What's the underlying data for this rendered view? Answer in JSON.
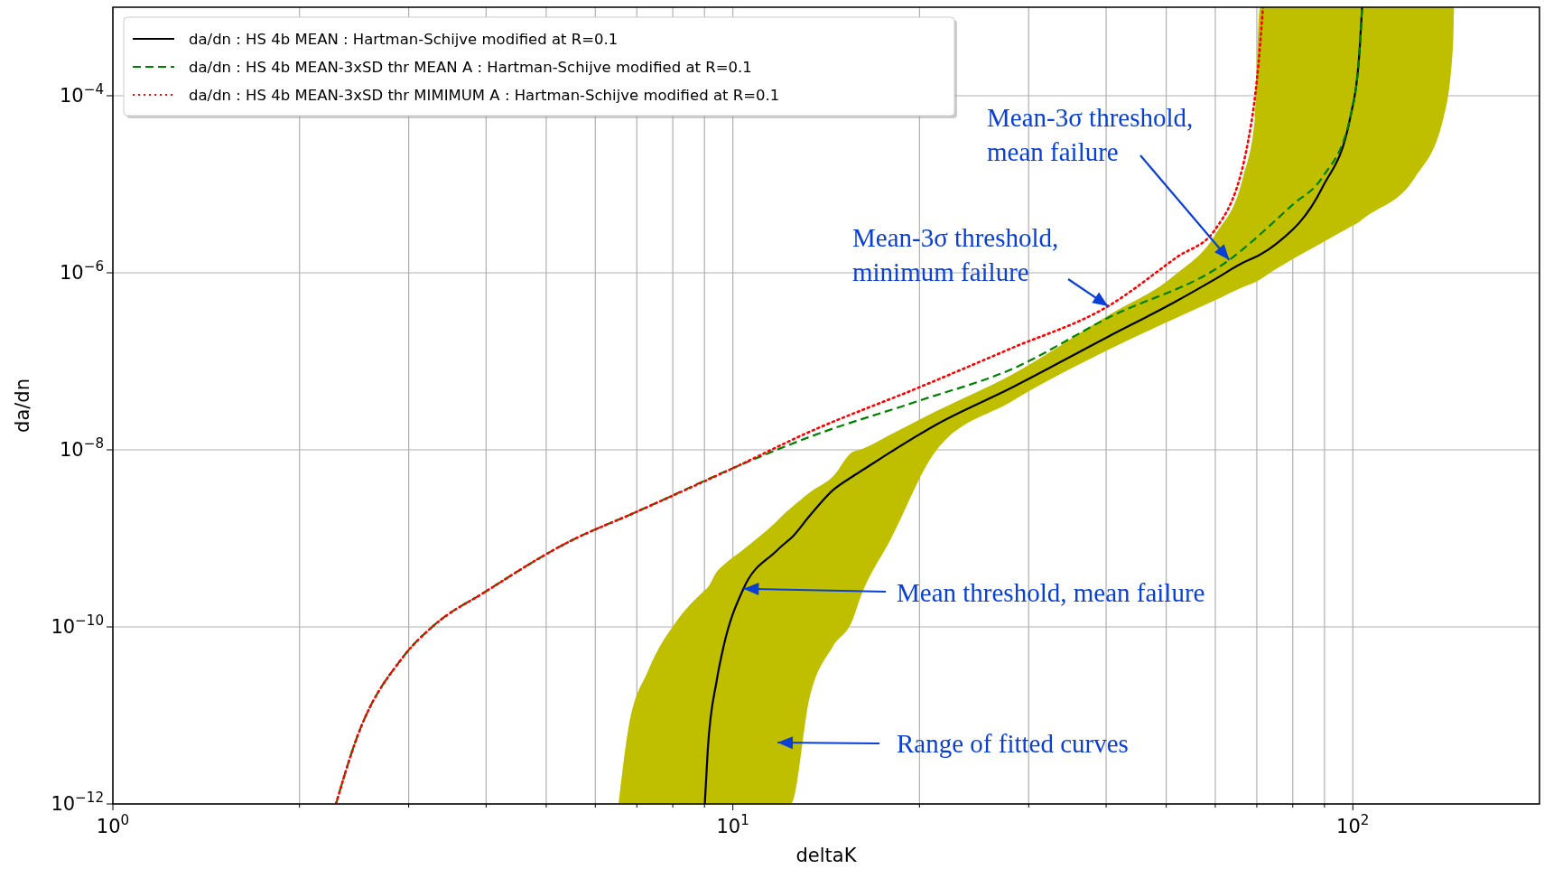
{
  "chart_data": {
    "type": "line",
    "xlabel": "deltaK",
    "ylabel": "da/dn",
    "log": "xy",
    "grid": true,
    "legend": "top left",
    "marker": "none",
    "xlim": [
      1,
      200
    ],
    "ylim": [
      1e-12,
      0.001
    ],
    "xticks": [
      {
        "value": 1,
        "label": "10$^{0}$"
      },
      {
        "value": 2,
        "label": null
      },
      {
        "value": 3,
        "label": null
      },
      {
        "value": 4,
        "label": null
      },
      {
        "value": 5,
        "label": null
      },
      {
        "value": 6,
        "label": null
      },
      {
        "value": 7,
        "label": null
      },
      {
        "value": 8,
        "label": null
      },
      {
        "value": 9,
        "label": null
      },
      {
        "value": 10,
        "label": "10$^{1}$"
      },
      {
        "value": 20,
        "label": null
      },
      {
        "value": 30,
        "label": null
      },
      {
        "value": 40,
        "label": null
      },
      {
        "value": 50,
        "label": null
      },
      {
        "value": 60,
        "label": null
      },
      {
        "value": 70,
        "label": null
      },
      {
        "value": 80,
        "label": null
      },
      {
        "value": 90,
        "label": null
      },
      {
        "value": 100,
        "label": "10$^{2}$"
      }
    ],
    "yticks": [
      {
        "value": 1e-12,
        "label": "10$^{−12}$"
      },
      {
        "value": 1e-10,
        "label": "10$^{−10}$"
      },
      {
        "value": 1e-08,
        "label": "10$^{−8}$"
      },
      {
        "value": 1e-06,
        "label": "10$^{−6}$"
      },
      {
        "value": 0.0001,
        "label": "10$^{−4}$"
      }
    ],
    "series": [
      {
        "name": "da/dn : HS 4b MEAN : Hartman-Schijve modified at R=0.1",
        "color": "#000000",
        "line_style": "solid",
        "x": [
          6.54,
          6.78,
          7.3,
          8.14,
          9.01,
          9.11,
          9.42,
          9.66,
          10.4,
          11.7,
          12.2,
          12.4,
          13.3,
          14.5,
          15.6,
          16,
          18,
          21.2,
          28.1,
          40.3,
          51.4,
          60,
          66.5,
          69.5,
          70.8,
          75.1,
          89.3,
          99,
          102.6,
          103.5,
          126,
          140,
          145,
          145.6
        ],
        "values": [
          null,
          null,
          null,
          null,
          1e-12,
          4.1e-12,
          2.5e-11,
          6e-11,
          2.7e-10,
          7e-10,
          9.1e-10,
          1e-09,
          1.8e-09,
          3.5e-09,
          5e-09,
          5.6e-09,
          9.5e-09,
          1.9e-08,
          5e-08,
          1.9e-07,
          4.6e-07,
          8.5e-07,
          1.3e-06,
          1.5e-06,
          1.6e-06,
          2.1e-06,
          9.2e-06,
          5.6e-05,
          0.00035,
          0.001,
          null,
          null,
          null,
          null
        ],
        "upper": [
          1e-12,
          7e-12,
          3.2e-11,
          1.2e-10,
          2.6e-10,
          2.8e-10,
          4.2e-10,
          5e-10,
          7.5e-10,
          1.5e-09,
          2e-09,
          2.2e-09,
          3.3e-09,
          5e-09,
          9.5e-09,
          1e-08,
          1.5e-08,
          2.7e-08,
          7e-08,
          3.3e-07,
          9.2e-07,
          2.7e-06,
          1.2e-05,
          5.6e-05,
          0.001,
          0.001,
          0.001,
          0.001,
          0.001,
          0.001,
          0.001,
          0.001,
          0.001,
          0.001
        ],
        "lower": [
          1e-12,
          1e-12,
          1e-12,
          1e-12,
          1e-12,
          1e-12,
          1e-12,
          1e-12,
          1e-12,
          1e-12,
          1e-12,
          1e-12,
          1.6e-11,
          6e-11,
          1.2e-10,
          2e-10,
          1e-09,
          9.5e-09,
          3.5e-08,
          1.35e-07,
          3e-07,
          4.9e-07,
          6.9e-07,
          7.8e-07,
          8.4e-07,
          1.1e-06,
          2.2e-06,
          3.3e-06,
          3.8e-06,
          4e-06,
          1.2e-05,
          5.6e-05,
          0.00035,
          0.001
        ]
      },
      {
        "name": "da/dn : HS 4b MEAN-3xSD thr MEAN A : Hartman-Schijve modified at R=0.1",
        "color": "#008000",
        "line_style": "dashed",
        "x": [
          2.29,
          2.47,
          2.94,
          3.3,
          3.99,
          5.43,
          7,
          10,
          13.3,
          20,
          28.1,
          40.3,
          63.2,
          80,
          89.3,
          99,
          102.6,
          103.5
        ],
        "values": [
          1e-12,
          5.4e-12,
          4.6e-11,
          1.05e-10,
          2.5e-10,
          9.1e-10,
          2e-09,
          6.2e-09,
          1.4e-08,
          3.6e-08,
          8.1e-08,
          3.1e-07,
          1.4e-06,
          5.9e-06,
          1.2e-05,
          5.6e-05,
          0.00035,
          0.001
        ]
      },
      {
        "name": "da/dn : HS 4b MEAN-3xSD thr MIMIMUM A : Hartman-Schijve modified at R=0.1",
        "color": "#ff0000",
        "line_style": "dotted",
        "x": [
          2.29,
          2.47,
          2.94,
          3.3,
          3.99,
          5.43,
          7,
          10,
          13.3,
          20,
          28.1,
          40.3,
          52,
          60,
          67.8,
          70.8,
          71.6
        ],
        "values": [
          1e-12,
          5.4e-12,
          4.6e-11,
          1.05e-10,
          2.5e-10,
          9.1e-10,
          2e-09,
          6.2e-09,
          1.6e-08,
          5.1e-08,
          1.4e-07,
          4.2e-07,
          1.5e-06,
          3.1e-06,
          3.1e-05,
          0.00035,
          0.001
        ]
      }
    ],
    "annotations": [
      {
        "text": "Mean-3σ threshold, mean failure",
        "x": 63.2,
        "y": 1.4e-06
      },
      {
        "text": "Mean-3σ threshold, minimum failure",
        "x": 40.3,
        "y": 4.2e-07
      },
      {
        "text": "Mean threshold, mean failure",
        "x": 10.4,
        "y": 2.7e-10
      },
      "Range of fitted curves"
    ]
  }
}
